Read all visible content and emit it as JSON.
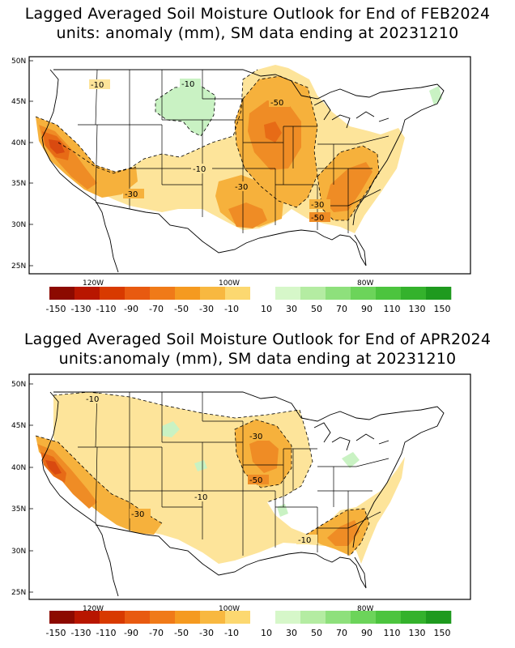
{
  "maps": [
    {
      "title_line1": "Lagged Averaged Soil Moisture Outlook for End of FEB2024",
      "title_line2": "units: anomaly (mm), SM data ending at 20231210",
      "lat_labels": [
        "50N",
        "45N",
        "40N",
        "35N",
        "30N",
        "25N"
      ],
      "lon_labels": [
        "120W",
        "100W",
        "80W"
      ],
      "contour_labels": [
        "-10",
        "-10",
        "-50",
        "-10",
        "-30",
        "-30",
        "-30",
        "-50"
      ]
    },
    {
      "title_line1": "Lagged Averaged Soil Moisture Outlook for End of APR2024",
      "title_line2": "units:anomaly (mm), SM data ending at 20231210",
      "lat_labels": [
        "50N",
        "45N",
        "40N",
        "35N",
        "30N",
        "25N"
      ],
      "lon_labels": [
        "120W",
        "100W",
        "80W"
      ],
      "contour_labels": [
        "-10",
        "-30",
        "-50",
        "-10",
        "-30",
        "-10"
      ]
    }
  ],
  "colorbar": {
    "labels": [
      "-150",
      "-130",
      "-110",
      "-90",
      "-70",
      "-50",
      "-30",
      "-10",
      "10",
      "30",
      "50",
      "70",
      "90",
      "110",
      "130",
      "150"
    ],
    "colors": [
      "#8c0a00",
      "#b81600",
      "#d83a00",
      "#e85a10",
      "#f07a18",
      "#f59a20",
      "#f8b840",
      "#fcd870",
      "#ffffff",
      "#d6f7c9",
      "#b4eca2",
      "#8ee07c",
      "#6cd45a",
      "#4cc43e",
      "#34b22c",
      "#1e9a1e"
    ]
  },
  "colors": {
    "light_yellow": "#fde49a",
    "yellow": "#f9d26a",
    "light_orange": "#f6b13c",
    "orange": "#ef8c25",
    "dark_orange": "#e76b16",
    "red_orange": "#d94a10",
    "light_green": "#c9f2c3"
  }
}
